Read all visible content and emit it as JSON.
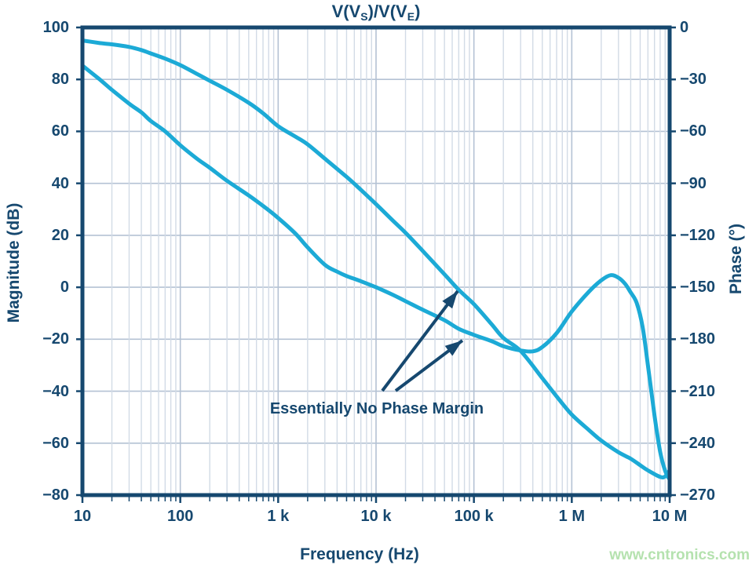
{
  "title": {
    "p1": "V(V",
    "sub1": "S",
    "p2": ")/V(V",
    "sub2": "E",
    "p3": ")"
  },
  "axes": {
    "x": {
      "label": "Frequency (Hz)",
      "scale": "log",
      "tick_labels": [
        "10",
        "100",
        "1 k",
        "10 k",
        "100 k",
        "1 M",
        "10 M"
      ],
      "tick_values": [
        10,
        100,
        1000,
        10000,
        100000,
        1000000,
        10000000
      ]
    },
    "y_left": {
      "label": "Magnitude (dB)",
      "ticks": [
        100,
        80,
        60,
        40,
        20,
        0,
        -20,
        -40,
        -60,
        -80
      ],
      "range": [
        100,
        -80
      ]
    },
    "y_right": {
      "label": "Phase (°)",
      "ticks": [
        0,
        -30,
        -60,
        -90,
        -120,
        -150,
        -180,
        -210,
        -240,
        -270
      ],
      "range": [
        0,
        -270
      ]
    }
  },
  "annotation": {
    "text": "Essentially No Phase Margin"
  },
  "watermark": "www.cntronics.com",
  "colors": {
    "curve": "#1caad6",
    "navy": "#16486f",
    "grid_major": "#b4c2d4",
    "grid_minor": "#d2dbe6",
    "watermark_green": "#b5e2af"
  },
  "chart_data": {
    "type": "line",
    "title": "V(V_S)/V(V_E)",
    "x": {
      "label": "Frequency (Hz)",
      "scale": "log",
      "range": [
        10,
        10000000
      ]
    },
    "y_left": {
      "label": "Magnitude (dB)",
      "range": [
        100,
        -80
      ]
    },
    "y_right": {
      "label": "Phase (deg)",
      "range": [
        0,
        -270
      ]
    },
    "grid": "on",
    "legend": "none",
    "series": [
      {
        "name": "Magnitude (dB)",
        "axis": "left",
        "points": [
          [
            10,
            95
          ],
          [
            15,
            94
          ],
          [
            20,
            93.5
          ],
          [
            30,
            92.5
          ],
          [
            40,
            91.3
          ],
          [
            50,
            90
          ],
          [
            70,
            88
          ],
          [
            100,
            85.5
          ],
          [
            150,
            82
          ],
          [
            200,
            79.5
          ],
          [
            300,
            76
          ],
          [
            500,
            71
          ],
          [
            700,
            67
          ],
          [
            1000,
            62
          ],
          [
            1500,
            58
          ],
          [
            2000,
            55
          ],
          [
            3000,
            49.5
          ],
          [
            5000,
            42.5
          ],
          [
            7000,
            37.5
          ],
          [
            10000,
            32
          ],
          [
            15000,
            25.5
          ],
          [
            20000,
            21
          ],
          [
            30000,
            14
          ],
          [
            50000,
            5
          ],
          [
            70000,
            -1
          ],
          [
            100000,
            -6.5
          ],
          [
            150000,
            -14
          ],
          [
            200000,
            -19.5
          ],
          [
            300000,
            -24.5
          ],
          [
            500000,
            -35
          ],
          [
            700000,
            -42
          ],
          [
            1000000,
            -49
          ],
          [
            1500000,
            -55
          ],
          [
            2000000,
            -59
          ],
          [
            3000000,
            -63.5
          ],
          [
            4000000,
            -66
          ],
          [
            5000000,
            -68.5
          ],
          [
            6000000,
            -70.5
          ],
          [
            8000000,
            -73
          ],
          [
            9000000,
            -72.8
          ],
          [
            10000000,
            -70.5
          ]
        ]
      },
      {
        "name": "Phase (deg)",
        "axis": "right",
        "points": [
          [
            10,
            -22
          ],
          [
            15,
            -30
          ],
          [
            20,
            -36
          ],
          [
            30,
            -44
          ],
          [
            40,
            -49
          ],
          [
            50,
            -54
          ],
          [
            70,
            -60
          ],
          [
            100,
            -68
          ],
          [
            150,
            -76
          ],
          [
            200,
            -81
          ],
          [
            300,
            -88.5
          ],
          [
            500,
            -97
          ],
          [
            700,
            -103
          ],
          [
            1000,
            -110
          ],
          [
            1500,
            -119
          ],
          [
            2000,
            -127
          ],
          [
            3000,
            -137
          ],
          [
            4000,
            -141
          ],
          [
            5000,
            -143.5
          ],
          [
            7000,
            -146.5
          ],
          [
            10000,
            -150
          ],
          [
            15000,
            -154.5
          ],
          [
            20000,
            -158
          ],
          [
            30000,
            -163
          ],
          [
            50000,
            -169
          ],
          [
            70000,
            -174
          ],
          [
            100000,
            -177.5
          ],
          [
            150000,
            -181
          ],
          [
            200000,
            -184
          ],
          [
            300000,
            -186.5
          ],
          [
            400000,
            -187
          ],
          [
            500000,
            -184.5
          ],
          [
            700000,
            -176.5
          ],
          [
            1000000,
            -164
          ],
          [
            1500000,
            -152.5
          ],
          [
            2000000,
            -146
          ],
          [
            2500000,
            -143
          ],
          [
            3000000,
            -144.5
          ],
          [
            3500000,
            -148
          ],
          [
            4000000,
            -153
          ],
          [
            4600000,
            -159
          ],
          [
            5300000,
            -173
          ],
          [
            6000000,
            -195
          ],
          [
            7000000,
            -224
          ],
          [
            8000000,
            -245
          ],
          [
            9000000,
            -256
          ],
          [
            10000000,
            -261
          ]
        ]
      }
    ],
    "annotations": [
      {
        "text": "Essentially No Phase Margin",
        "meaning": "loop gain crosses 0 dB near 70 kHz where phase is about -180 deg"
      }
    ]
  }
}
